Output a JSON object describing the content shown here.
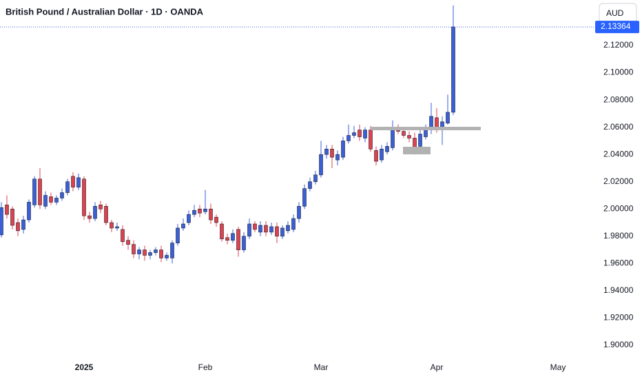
{
  "chart_data": {
    "type": "candlestick",
    "title": "British Pound / Australian Dollar · 1D · OANDA",
    "currency_button": "AUD",
    "categories": [
      null,
      null,
      null,
      null,
      null,
      null,
      null,
      null,
      null,
      null,
      null,
      null,
      null,
      null,
      null,
      "2025",
      null,
      null,
      null,
      null,
      null,
      null,
      null,
      null,
      null,
      null,
      null,
      null,
      null,
      null,
      null,
      null,
      null,
      null,
      null,
      null,
      null,
      "Feb",
      null,
      null,
      null,
      null,
      null,
      null,
      null,
      null,
      null,
      null,
      null,
      null,
      null,
      null,
      null,
      null,
      null,
      null,
      null,
      null,
      "Mar",
      null,
      null,
      null,
      null,
      null,
      null,
      null,
      null,
      null,
      null,
      null,
      null,
      null,
      null,
      null,
      null,
      null,
      null,
      null,
      null,
      "Apr",
      null,
      null,
      null,
      null,
      null,
      null,
      null,
      null,
      null,
      null,
      null,
      null,
      null,
      null,
      null,
      null,
      null,
      null,
      null,
      null,
      null,
      "May",
      null,
      null,
      null,
      null,
      null,
      null
    ],
    "open": [
      1.981,
      2.003,
      2.0,
      1.99,
      1.985,
      1.992,
      2.003,
      2.022,
      2.002,
      2.009,
      2.005,
      2.008,
      2.012,
      2.024,
      2.016,
      2.022,
      1.995,
      1.993,
      2.003,
      2.002,
      1.99,
      1.986,
      1.985,
      1.977,
      1.974,
      1.967,
      1.97,
      1.966,
      1.968,
      1.97,
      1.964,
      1.964,
      1.975,
      1.986,
      1.99,
      1.996,
      2.0,
      1.998,
      2.0,
      1.994,
      1.989,
      1.979,
      1.977,
      1.985,
      1.97,
      1.98,
      1.989,
      1.983,
      1.988,
      1.983,
      1.987,
      1.98,
      1.984,
      1.985,
      1.993,
      2.002,
      2.015,
      2.02,
      2.025,
      2.04,
      2.044,
      2.036,
      2.038,
      2.05,
      2.054,
      2.058,
      2.052,
      2.058,
      2.043,
      2.036,
      2.042,
      2.045,
      2.059,
      2.057,
      2.054,
      2.052,
      2.046,
      2.053,
      2.058,
      2.067,
      2.058,
      2.063,
      2.071,
      null,
      null,
      null,
      null,
      null,
      null,
      null,
      null,
      null,
      null,
      null,
      null,
      null,
      null,
      null,
      null,
      null,
      null,
      null,
      null,
      null,
      null,
      null,
      null,
      null
    ],
    "high": [
      2.005,
      2.01,
      2.002,
      1.993,
      1.995,
      2.007,
      2.024,
      2.03,
      2.013,
      2.012,
      2.01,
      2.015,
      2.022,
      2.027,
      2.026,
      2.024,
      1.998,
      2.005,
      2.006,
      2.004,
      1.992,
      1.99,
      1.988,
      1.98,
      1.977,
      1.972,
      1.973,
      1.97,
      1.972,
      1.973,
      1.968,
      1.977,
      1.989,
      1.993,
      1.999,
      2.003,
      2.003,
      2.014,
      2.004,
      1.996,
      1.991,
      1.982,
      1.985,
      1.987,
      1.983,
      1.993,
      1.991,
      1.991,
      1.991,
      1.99,
      1.99,
      1.988,
      1.991,
      1.996,
      2.005,
      2.018,
      2.023,
      2.028,
      2.05,
      2.047,
      2.047,
      2.043,
      2.053,
      2.062,
      2.061,
      2.062,
      2.06,
      2.061,
      2.046,
      2.047,
      2.049,
      2.065,
      2.062,
      2.06,
      2.057,
      2.056,
      2.058,
      2.062,
      2.078,
      2.074,
      2.068,
      2.084,
      2.1494,
      null,
      null,
      null,
      null,
      null,
      null,
      null,
      null,
      null,
      null,
      null,
      null,
      null,
      null,
      null,
      null,
      null,
      null,
      null,
      null,
      null,
      null,
      null,
      null,
      null
    ],
    "low": [
      1.979,
      1.993,
      1.985,
      1.98,
      1.982,
      1.99,
      2.001,
      2.0,
      2.0,
      2.003,
      2.003,
      2.006,
      2.01,
      2.013,
      2.014,
      1.992,
      1.99,
      1.991,
      1.997,
      1.988,
      1.983,
      1.984,
      1.973,
      1.97,
      1.964,
      1.963,
      1.962,
      1.963,
      1.966,
      1.961,
      1.962,
      1.96,
      1.973,
      1.984,
      1.988,
      1.994,
      1.994,
      1.996,
      1.989,
      1.987,
      1.976,
      1.974,
      1.975,
      1.965,
      1.968,
      1.978,
      1.983,
      1.98,
      1.98,
      1.981,
      1.975,
      1.978,
      1.982,
      1.983,
      1.99,
      2.0,
      2.013,
      2.018,
      2.023,
      2.037,
      2.03,
      2.032,
      2.036,
      2.048,
      2.052,
      2.05,
      2.049,
      2.042,
      2.032,
      2.034,
      2.04,
      2.043,
      2.055,
      2.052,
      2.049,
      2.04,
      2.044,
      2.051,
      2.055,
      2.056,
      2.047,
      2.062,
      2.069,
      null,
      null,
      null,
      null,
      null,
      null,
      null,
      null,
      null,
      null,
      null,
      null,
      null,
      null,
      null,
      null,
      null,
      null,
      null,
      null,
      null,
      null,
      null,
      null,
      null
    ],
    "close": [
      2.001,
      1.996,
      1.988,
      1.984,
      1.992,
      2.005,
      2.022,
      2.003,
      2.01,
      2.005,
      2.008,
      2.012,
      2.02,
      2.016,
      2.023,
      1.995,
      1.993,
      2.002,
      2.0,
      1.99,
      1.986,
      1.987,
      1.976,
      1.974,
      1.967,
      1.97,
      1.966,
      1.968,
      1.97,
      1.964,
      1.966,
      1.975,
      1.986,
      1.989,
      1.996,
      1.999,
      1.997,
      2.0,
      1.992,
      1.99,
      1.978,
      1.977,
      1.982,
      1.97,
      1.98,
      1.989,
      1.985,
      1.988,
      1.983,
      1.987,
      1.98,
      1.986,
      1.988,
      1.993,
      2.002,
      2.015,
      2.02,
      2.025,
      2.04,
      2.044,
      2.038,
      2.04,
      2.05,
      2.054,
      2.056,
      2.053,
      2.058,
      2.044,
      2.035,
      2.044,
      2.046,
      2.058,
      2.057,
      2.054,
      2.052,
      2.044,
      2.055,
      2.058,
      2.068,
      2.058,
      2.064,
      2.071,
      2.13364,
      null,
      null,
      null,
      null,
      null,
      null,
      null,
      null,
      null,
      null,
      null,
      null,
      null,
      null,
      null,
      null,
      null,
      null,
      null,
      null,
      null,
      null,
      null,
      null,
      null
    ],
    "up_color": "#3a5fd9",
    "down_color": "#e0414f",
    "ylim": [
      1.8929,
      2.1534
    ],
    "yticks": [
      {
        "value": 1.9,
        "label": "1.90000"
      },
      {
        "value": 1.92,
        "label": "1.92000"
      },
      {
        "value": 1.94,
        "label": "1.94000"
      },
      {
        "value": 1.96,
        "label": "1.96000"
      },
      {
        "value": 1.98,
        "label": "1.98000"
      },
      {
        "value": 2.0,
        "label": "2.00000"
      },
      {
        "value": 2.02,
        "label": "2.02000"
      },
      {
        "value": 2.04,
        "label": "2.04000"
      },
      {
        "value": 2.06,
        "label": "2.06000"
      },
      {
        "value": 2.08,
        "label": "2.08000"
      },
      {
        "value": 2.1,
        "label": "2.10000"
      },
      {
        "value": 2.12,
        "label": "2.12000"
      }
    ]
  }
}
